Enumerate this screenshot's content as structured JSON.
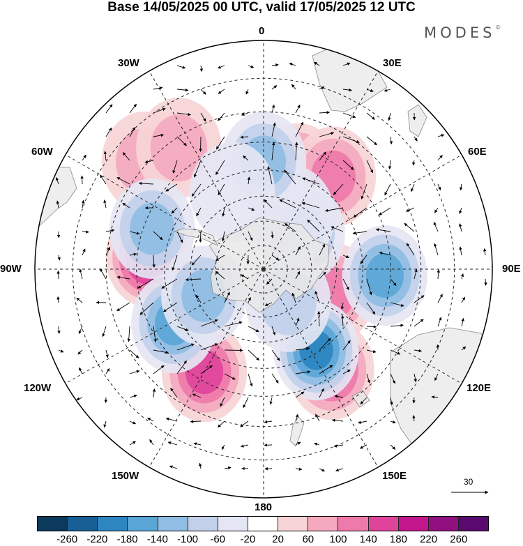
{
  "title": "Base 14/05/2025 00 UTC, valid 17/05/2025 12 UTC",
  "brand": "MODES",
  "brand_mark": "©",
  "longitude_labels": {
    "top": "0",
    "e30": "30E",
    "e60": "60E",
    "e90": "90E",
    "e120": "120E",
    "e150": "150E",
    "bottom": "180",
    "w150": "150W",
    "w120": "120W",
    "w90": "90W",
    "w60": "60W",
    "w30": "30W"
  },
  "reference_vector_label": "30",
  "colorbar": {
    "colors": [
      "#0b3a5c",
      "#175f95",
      "#2d86c0",
      "#5aa6d6",
      "#8fbde3",
      "#c2d0ea",
      "#e5e6f3",
      "#ffffff",
      "#f7d4d6",
      "#f4a9bf",
      "#ee7aab",
      "#e0449a",
      "#c2178c",
      "#90107f",
      "#5a0a6e"
    ],
    "ticks": [
      "-260",
      "-220",
      "-180",
      "-140",
      "-100",
      "-60",
      "-20",
      "20",
      "60",
      "100",
      "140",
      "180",
      "220",
      "260"
    ]
  },
  "anomaly_centers": [
    {
      "lon": -84,
      "lat": -44,
      "value": 200
    },
    {
      "lon": 146,
      "lat": -42,
      "value": 180
    },
    {
      "lon": 20,
      "lat": -49,
      "value": 170
    },
    {
      "lon": -150,
      "lat": -43,
      "value": 150
    },
    {
      "lon": 37,
      "lat": -44,
      "value": 140
    },
    {
      "lon": 109,
      "lat": -60,
      "value": 120
    },
    {
      "lon": -48,
      "lat": -29,
      "value": 100
    },
    {
      "lon": -35,
      "lat": -33,
      "value": 80
    },
    {
      "lon": 93,
      "lat": -42,
      "value": -170
    },
    {
      "lon": 147,
      "lat": -51,
      "value": -200
    },
    {
      "lon": -121,
      "lat": -48,
      "value": -180
    },
    {
      "lon": -114,
      "lat": -63,
      "value": -110
    },
    {
      "lon": -70,
      "lat": -43,
      "value": -120
    },
    {
      "lon": 47,
      "lat": -68,
      "value": -110
    },
    {
      "lon": 28,
      "lat": -65,
      "value": -60
    },
    {
      "lon": 0,
      "lat": -47,
      "value": -130
    },
    {
      "lon": 143,
      "lat": -73,
      "value": -100
    },
    {
      "lon": -22,
      "lat": -56,
      "value": -50
    }
  ]
}
